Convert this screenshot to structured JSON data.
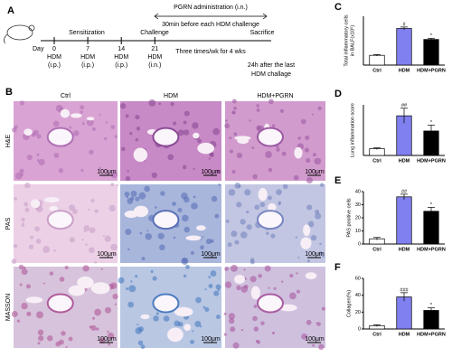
{
  "panel_labels": [
    "A",
    "B",
    "C",
    "D",
    "E",
    "F"
  ],
  "timeline": {
    "day_label": "Day",
    "days": [
      {
        "day": 0,
        "agent": "HDM",
        "route": "(i.p.)"
      },
      {
        "day": 7,
        "agent": "HDM",
        "route": "(i.p.)"
      },
      {
        "day": 14,
        "agent": "HDM",
        "route": "(i.p.)"
      },
      {
        "day": 21,
        "agent": "HDM",
        "route": "(i.n.)"
      }
    ],
    "sensitization": "Sensitization",
    "challenge": "Challenge",
    "sacrifice": "Sacrifice",
    "pgrn": [
      "PGRN administration (i.n.)",
      "30min before each HDM challenge"
    ],
    "frequency": "Three times/wk for  4 wks",
    "sacrifice_note": [
      "24h after the last",
      "HDM challage"
    ]
  },
  "histology": {
    "columns": [
      "Ctrl",
      "HDM",
      "HDM+PGRN"
    ],
    "rows": [
      "H&E",
      "PAS",
      "MASSON"
    ],
    "scale_bar": "100μm"
  },
  "chart_data": [
    {
      "type": "bar",
      "ylabel": [
        "Total inflammatory cells",
        "in BALF(x10⁵)"
      ],
      "categories": [
        "Ctrl",
        "HDM",
        "HDM+PGRN"
      ],
      "values": [
        4,
        15,
        10.5
      ],
      "errors": [
        0.3,
        0.6,
        0.5
      ],
      "significance": [
        null,
        "#",
        "*"
      ],
      "colors": [
        "#ffffff",
        "#8080f0",
        "#000000"
      ],
      "ylim": [
        0,
        20
      ]
    },
    {
      "type": "bar",
      "ylabel": "Lung inflammation score",
      "categories": [
        "Ctrl",
        "HDM",
        "HDM+PGRN"
      ],
      "values": [
        0.4,
        2.35,
        1.45
      ],
      "errors": [
        0.05,
        0.45,
        0.35
      ],
      "significance": [
        null,
        "##",
        "*"
      ],
      "colors": [
        "#ffffff",
        "#8080f0",
        "#000000"
      ],
      "ylim": [
        0,
        3
      ]
    },
    {
      "type": "bar",
      "ylabel": "PAS positive cells",
      "categories": [
        "Ctrl",
        "HDM",
        "HDM+PGRN"
      ],
      "values": [
        4,
        36,
        25
      ],
      "errors": [
        1,
        2,
        3
      ],
      "significance": [
        null,
        "##",
        "*"
      ],
      "colors": [
        "#ffffff",
        "#8080f0",
        "#000000"
      ],
      "ylim": [
        0,
        40
      ],
      "yticks": [
        0,
        10,
        20,
        30,
        40
      ]
    },
    {
      "type": "bar",
      "ylabel": "Collagen(%)",
      "categories": [
        "Ctrl",
        "HDM",
        "HDM+PGRN"
      ],
      "values": [
        4,
        38,
        22
      ],
      "errors": [
        1,
        5,
        3
      ],
      "significance": [
        null,
        "###",
        "*"
      ],
      "colors": [
        "#ffffff",
        "#8080f0",
        "#000000"
      ],
      "ylim": [
        0,
        60
      ],
      "yticks": [
        0,
        20,
        40,
        60
      ]
    }
  ]
}
